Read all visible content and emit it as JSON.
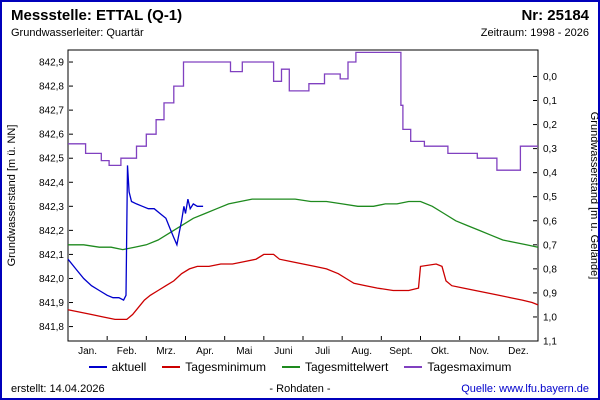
{
  "header": {
    "station_label": "Messstelle: ETTAL (Q-1)",
    "number_label": "Nr: 25184",
    "aquifer_label": "Grundwasserleiter: Quartär",
    "period_label": "Zeitraum: 1998 - 2026"
  },
  "footer": {
    "created_label": "erstellt: 14.04.2026",
    "center_label": "- Rohdaten -",
    "source_label": "Quelle: www.lfu.bayern.de"
  },
  "colors": {
    "page_border": "#0000bb",
    "link": "#0000cc",
    "axis": "#000000"
  },
  "chart_data": {
    "type": "line",
    "title": "",
    "xlabel": "",
    "ylabel_left": "Grundwasserstand [m ü. NN]",
    "ylabel_right": "Grundwasserstand [m u. Gelände]",
    "ylim_left": [
      841.74,
      842.95
    ],
    "right_axis_zero_elevation": 842.84,
    "grid": false,
    "legend_position": "bottom",
    "x_tick_labels": [
      "Jan.",
      "Feb.",
      "Mrz.",
      "Apr.",
      "Mai",
      "Juni",
      "Juli",
      "Aug.",
      "Sept.",
      "Okt.",
      "Nov.",
      "Dez."
    ],
    "left_ticks": [
      {
        "value": 841.8,
        "label": "841,8"
      },
      {
        "value": 841.9,
        "label": "841,9"
      },
      {
        "value": 842.0,
        "label": "842,0"
      },
      {
        "value": 842.1,
        "label": "842,1"
      },
      {
        "value": 842.2,
        "label": "842,2"
      },
      {
        "value": 842.3,
        "label": "842,3"
      },
      {
        "value": 842.4,
        "label": "842,4"
      },
      {
        "value": 842.5,
        "label": "842,5"
      },
      {
        "value": 842.6,
        "label": "842,6"
      },
      {
        "value": 842.7,
        "label": "842,7"
      },
      {
        "value": 842.8,
        "label": "842,8"
      },
      {
        "value": 842.9,
        "label": "842,9"
      }
    ],
    "right_ticks": [
      {
        "value": 0.0,
        "label": "0,0"
      },
      {
        "value": 0.1,
        "label": "0,1"
      },
      {
        "value": 0.2,
        "label": "0,2"
      },
      {
        "value": 0.3,
        "label": "0,3"
      },
      {
        "value": 0.4,
        "label": "0,4"
      },
      {
        "value": 0.5,
        "label": "0,5"
      },
      {
        "value": 0.6,
        "label": "0,6"
      },
      {
        "value": 0.7,
        "label": "0,7"
      },
      {
        "value": 0.8,
        "label": "0,8"
      },
      {
        "value": 0.9,
        "label": "0,9"
      },
      {
        "value": 1.0,
        "label": "1,0"
      },
      {
        "value": 1.1,
        "label": "1,1"
      }
    ],
    "series": [
      {
        "id": "aktuell",
        "name": "aktuell",
        "color": "#0000cc",
        "points": [
          [
            0,
            842.08
          ],
          [
            0.2,
            842.04
          ],
          [
            0.4,
            842.0
          ],
          [
            0.6,
            841.97
          ],
          [
            0.8,
            841.95
          ],
          [
            1.0,
            841.93
          ],
          [
            1.15,
            841.92
          ],
          [
            1.3,
            841.92
          ],
          [
            1.42,
            841.91
          ],
          [
            1.48,
            841.93
          ],
          [
            1.52,
            842.47
          ],
          [
            1.56,
            842.36
          ],
          [
            1.62,
            842.32
          ],
          [
            1.75,
            842.31
          ],
          [
            1.9,
            842.3
          ],
          [
            2.05,
            842.29
          ],
          [
            2.2,
            842.29
          ],
          [
            2.35,
            842.27
          ],
          [
            2.5,
            842.25
          ],
          [
            2.6,
            842.21
          ],
          [
            2.7,
            842.17
          ],
          [
            2.78,
            842.14
          ],
          [
            2.84,
            842.19
          ],
          [
            2.9,
            842.24
          ],
          [
            2.96,
            842.3
          ],
          [
            3.0,
            842.27
          ],
          [
            3.06,
            842.33
          ],
          [
            3.12,
            842.29
          ],
          [
            3.2,
            842.31
          ],
          [
            3.3,
            842.3
          ],
          [
            3.45,
            842.3
          ]
        ]
      },
      {
        "id": "tagesminimum",
        "name": "Tagesminimum",
        "color": "#cc0000",
        "points": [
          [
            0,
            841.87
          ],
          [
            0.3,
            841.86
          ],
          [
            0.6,
            841.85
          ],
          [
            0.9,
            841.84
          ],
          [
            1.2,
            841.83
          ],
          [
            1.5,
            841.83
          ],
          [
            1.65,
            841.85
          ],
          [
            1.8,
            841.88
          ],
          [
            1.95,
            841.91
          ],
          [
            2.1,
            841.93
          ],
          [
            2.3,
            841.95
          ],
          [
            2.5,
            841.97
          ],
          [
            2.7,
            841.99
          ],
          [
            2.9,
            842.02
          ],
          [
            3.1,
            842.04
          ],
          [
            3.3,
            842.05
          ],
          [
            3.6,
            842.05
          ],
          [
            3.9,
            842.06
          ],
          [
            4.2,
            842.06
          ],
          [
            4.5,
            842.07
          ],
          [
            4.8,
            842.08
          ],
          [
            5.0,
            842.1
          ],
          [
            5.25,
            842.1
          ],
          [
            5.4,
            842.08
          ],
          [
            5.7,
            842.07
          ],
          [
            6.0,
            842.06
          ],
          [
            6.3,
            842.05
          ],
          [
            6.6,
            842.04
          ],
          [
            6.9,
            842.02
          ],
          [
            7.1,
            842.0
          ],
          [
            7.3,
            841.98
          ],
          [
            7.6,
            841.97
          ],
          [
            7.9,
            841.96
          ],
          [
            8.3,
            841.95
          ],
          [
            8.7,
            841.95
          ],
          [
            8.95,
            841.96
          ],
          [
            9.0,
            842.05
          ],
          [
            9.4,
            842.06
          ],
          [
            9.55,
            842.05
          ],
          [
            9.65,
            841.99
          ],
          [
            9.8,
            841.97
          ],
          [
            10.1,
            841.96
          ],
          [
            10.4,
            841.95
          ],
          [
            10.7,
            841.94
          ],
          [
            11.0,
            841.93
          ],
          [
            11.3,
            841.92
          ],
          [
            11.6,
            841.91
          ],
          [
            11.85,
            841.9
          ],
          [
            12,
            841.89
          ]
        ]
      },
      {
        "id": "tagesmittelwert",
        "name": "Tagesmittelwert",
        "color": "#1e8a1e",
        "points": [
          [
            0,
            842.14
          ],
          [
            0.4,
            842.14
          ],
          [
            0.8,
            842.13
          ],
          [
            1.1,
            842.13
          ],
          [
            1.4,
            842.12
          ],
          [
            1.7,
            842.13
          ],
          [
            2.0,
            842.14
          ],
          [
            2.3,
            842.16
          ],
          [
            2.6,
            842.19
          ],
          [
            2.9,
            842.22
          ],
          [
            3.2,
            842.25
          ],
          [
            3.5,
            842.27
          ],
          [
            3.8,
            842.29
          ],
          [
            4.1,
            842.31
          ],
          [
            4.4,
            842.32
          ],
          [
            4.7,
            842.33
          ],
          [
            5.0,
            842.33
          ],
          [
            5.4,
            842.33
          ],
          [
            5.8,
            842.33
          ],
          [
            6.2,
            842.32
          ],
          [
            6.6,
            842.32
          ],
          [
            7.0,
            842.31
          ],
          [
            7.4,
            842.3
          ],
          [
            7.8,
            842.3
          ],
          [
            8.1,
            842.31
          ],
          [
            8.4,
            842.31
          ],
          [
            8.7,
            842.32
          ],
          [
            9.0,
            842.32
          ],
          [
            9.3,
            842.3
          ],
          [
            9.6,
            842.27
          ],
          [
            9.9,
            842.24
          ],
          [
            10.2,
            842.22
          ],
          [
            10.5,
            842.2
          ],
          [
            10.8,
            842.18
          ],
          [
            11.1,
            842.16
          ],
          [
            11.4,
            842.15
          ],
          [
            11.7,
            842.14
          ],
          [
            12,
            842.13
          ]
        ]
      },
      {
        "id": "tagesmaximum",
        "name": "Tagesmaximum",
        "color": "#8040c0",
        "points": [
          [
            0,
            842.56
          ],
          [
            0.45,
            842.56
          ],
          [
            0.45,
            842.52
          ],
          [
            0.85,
            842.52
          ],
          [
            0.85,
            842.49
          ],
          [
            1.05,
            842.49
          ],
          [
            1.05,
            842.47
          ],
          [
            1.35,
            842.47
          ],
          [
            1.35,
            842.5
          ],
          [
            1.75,
            842.5
          ],
          [
            1.75,
            842.55
          ],
          [
            2.0,
            842.55
          ],
          [
            2.0,
            842.6
          ],
          [
            2.25,
            842.6
          ],
          [
            2.25,
            842.66
          ],
          [
            2.45,
            842.66
          ],
          [
            2.45,
            842.73
          ],
          [
            2.7,
            842.73
          ],
          [
            2.7,
            842.8
          ],
          [
            2.95,
            842.8
          ],
          [
            2.95,
            842.9
          ],
          [
            4.15,
            842.9
          ],
          [
            4.15,
            842.86
          ],
          [
            4.45,
            842.86
          ],
          [
            4.45,
            842.9
          ],
          [
            5.25,
            842.9
          ],
          [
            5.25,
            842.82
          ],
          [
            5.45,
            842.82
          ],
          [
            5.45,
            842.87
          ],
          [
            5.65,
            842.87
          ],
          [
            5.65,
            842.78
          ],
          [
            6.15,
            842.78
          ],
          [
            6.15,
            842.81
          ],
          [
            6.55,
            842.81
          ],
          [
            6.55,
            842.85
          ],
          [
            6.95,
            842.85
          ],
          [
            6.95,
            842.83
          ],
          [
            7.15,
            842.83
          ],
          [
            7.15,
            842.9
          ],
          [
            7.35,
            842.9
          ],
          [
            7.35,
            842.94
          ],
          [
            8.5,
            842.94
          ],
          [
            8.5,
            842.72
          ],
          [
            8.55,
            842.72
          ],
          [
            8.55,
            842.62
          ],
          [
            8.75,
            842.62
          ],
          [
            8.75,
            842.57
          ],
          [
            9.1,
            842.57
          ],
          [
            9.1,
            842.55
          ],
          [
            9.7,
            842.55
          ],
          [
            9.7,
            842.52
          ],
          [
            10.45,
            842.52
          ],
          [
            10.45,
            842.5
          ],
          [
            10.95,
            842.5
          ],
          [
            10.95,
            842.45
          ],
          [
            11.55,
            842.45
          ],
          [
            11.55,
            842.55
          ],
          [
            12,
            842.55
          ]
        ]
      }
    ]
  }
}
